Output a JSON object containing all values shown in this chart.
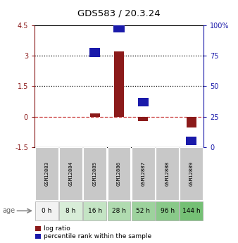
{
  "title": "GDS583 / 20.3.24",
  "samples": [
    "GSM12883",
    "GSM12884",
    "GSM12885",
    "GSM12886",
    "GSM12887",
    "GSM12888",
    "GSM12889"
  ],
  "ages": [
    "0 h",
    "8 h",
    "16 h",
    "28 h",
    "52 h",
    "96 h",
    "144 h"
  ],
  "log_ratio": [
    0.0,
    0.0,
    0.15,
    3.22,
    -0.22,
    0.0,
    -0.52
  ],
  "percentile_rank": [
    0.0,
    0.0,
    78.0,
    98.0,
    37.0,
    0.0,
    5.0
  ],
  "ylim_left": [
    -1.5,
    4.5
  ],
  "ylim_right": [
    0,
    100
  ],
  "yticks_left": [
    -1.5,
    0.0,
    1.5,
    3.0,
    4.5
  ],
  "yticks_right": [
    0,
    25,
    50,
    75,
    100
  ],
  "ytick_labels_left": [
    "-1.5",
    "0",
    "1.5",
    "3",
    "4.5"
  ],
  "ytick_labels_right": [
    "0",
    "25",
    "50",
    "75",
    "100%"
  ],
  "hlines_dotted": [
    1.5,
    3.0
  ],
  "hline_dashed": 0.0,
  "bar_color": "#8B1A1A",
  "sq_color": "#1a1aaa",
  "age_colors": [
    "#f2f2f2",
    "#d8edd8",
    "#c4e4c4",
    "#b0dbb0",
    "#9dd29d",
    "#89c989",
    "#75c075"
  ],
  "sample_box_color": "#c8c8c8",
  "legend_red_label": "log ratio",
  "legend_blue_label": "percentile rank within the sample",
  "age_label": "age"
}
